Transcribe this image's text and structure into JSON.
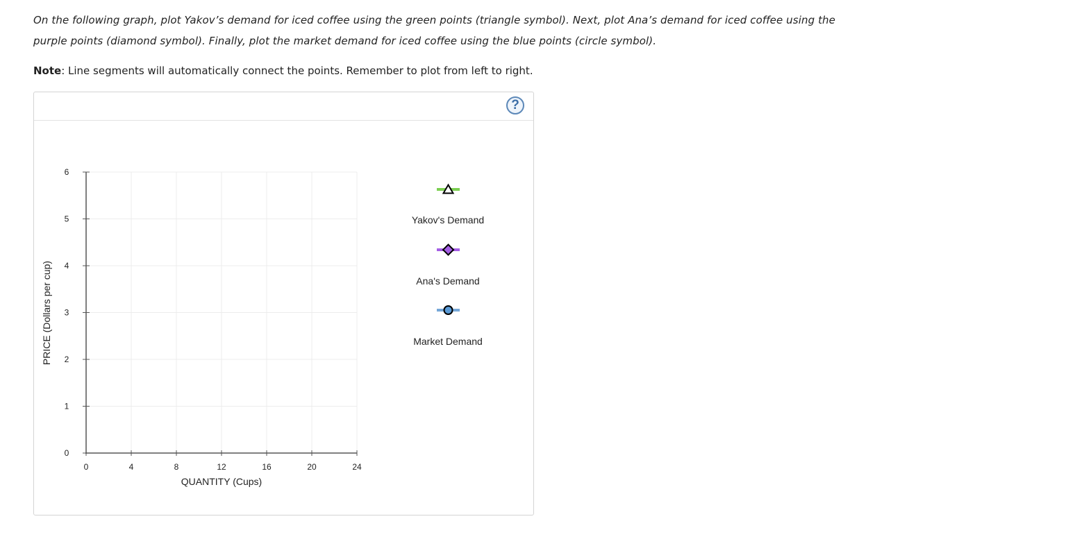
{
  "instructions": {
    "main_text": "On the following graph, plot Yakov’s demand for iced coffee using the green points (triangle symbol). Next, plot Ana’s demand for iced coffee using the purple points (diamond symbol). Finally, plot the market demand for iced coffee using the blue points (circle symbol).",
    "note_label": "Note",
    "note_text": ": Line segments will automatically connect the points. Remember to plot from left to right."
  },
  "help_button": {
    "label": "?"
  },
  "chart_data": {
    "type": "line",
    "xlabel": "QUANTITY (Cups)",
    "ylabel": "PRICE (Dollars per cup)",
    "xlim": [
      0,
      24
    ],
    "ylim": [
      0,
      6
    ],
    "x_ticks": [
      "0",
      "4",
      "8",
      "12",
      "16",
      "20",
      "24"
    ],
    "y_ticks": [
      "0",
      "1",
      "2",
      "3",
      "4",
      "5",
      "6"
    ],
    "grid": true,
    "legend_placement": "right",
    "series": [
      {
        "name": "Yakov's Demand",
        "marker": "triangle",
        "color": "#7ccf52",
        "values": []
      },
      {
        "name": "Ana's Demand",
        "marker": "diamond",
        "color": "#a45ee5",
        "values": []
      },
      {
        "name": "Market Demand",
        "marker": "circle",
        "color": "#76a7d8",
        "values": []
      }
    ]
  },
  "legend": {
    "items": [
      {
        "label": "Yakov's Demand",
        "icon": "triangle-icon"
      },
      {
        "label": "Ana's Demand",
        "icon": "diamond-icon"
      },
      {
        "label": "Market Demand",
        "icon": "circle-icon"
      }
    ]
  },
  "colors": {
    "grid": "#ececec",
    "axis": "#555555",
    "yakov": "#7ccf52",
    "ana": "#a45ee5",
    "market": "#76a7d8",
    "market_fill": "#5a9ad6"
  }
}
